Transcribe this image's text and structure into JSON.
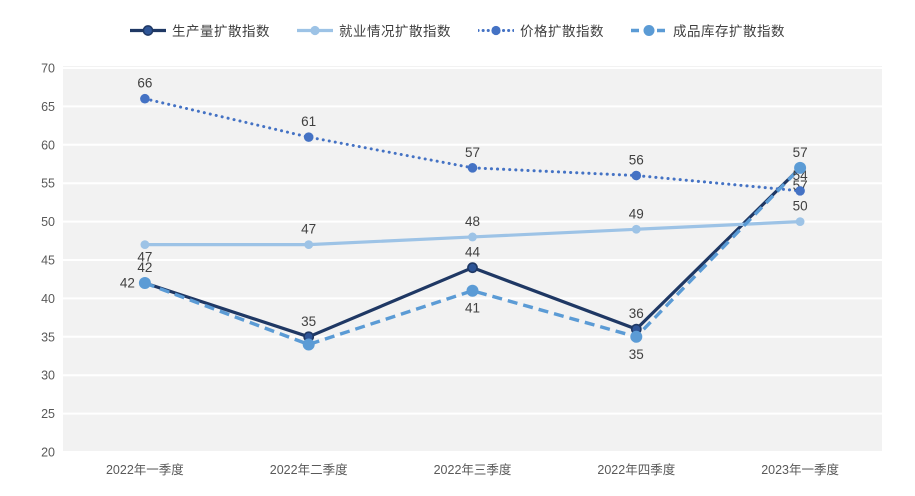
{
  "chart_data": {
    "type": "line",
    "title": "",
    "legend_position": "top",
    "grid": true,
    "plot_bg_color": "#f2f2f2",
    "grid_color": "#ffffff",
    "data_label_color": "#404040",
    "axis_label_color": "#595959",
    "categories": [
      "2022年一季度",
      "2022年二季度",
      "2022年三季度",
      "2022年四季度",
      "2023年一季度"
    ],
    "y_axis": {
      "min": 20,
      "max": 70,
      "step": 5,
      "ticks": [
        70,
        65,
        60,
        55,
        50,
        45,
        40,
        35,
        30,
        25,
        20
      ],
      "tick_labels": [
        "70",
        "65",
        "60",
        "55",
        "50",
        "45",
        "40",
        "35",
        "30",
        "25",
        "20"
      ]
    },
    "series": [
      {
        "id": "production",
        "name": "生产量扩散指数",
        "style": "solid",
        "line_color": "#1f3864",
        "marker_color": "#2e5597",
        "values": [
          42,
          35,
          44,
          36,
          57
        ],
        "data_labels": [
          "42",
          "35",
          "44",
          "36",
          "57"
        ],
        "label_positions": [
          "above",
          "above",
          "above",
          "above",
          "above"
        ]
      },
      {
        "id": "employment",
        "name": "就业情况扩散指数",
        "style": "solid",
        "line_color": "#9dc3e6",
        "marker_color": "#9dc3e6",
        "values": [
          47,
          47,
          48,
          49,
          50
        ],
        "data_labels": [
          "47",
          "47",
          "48",
          "49",
          "50"
        ],
        "label_positions": [
          "below",
          "above",
          "above",
          "above",
          "above"
        ]
      },
      {
        "id": "price",
        "name": "价格扩散指数",
        "style": "dotted",
        "line_color": "#4472c4",
        "marker_color": "#4472c4",
        "values": [
          66,
          61,
          57,
          56,
          54
        ],
        "data_labels": [
          "66",
          "61",
          "57",
          "56",
          "54"
        ],
        "label_positions": [
          "above",
          "above",
          "above",
          "above",
          "above"
        ]
      },
      {
        "id": "inventory",
        "name": "成品库存扩散指数",
        "style": "dashed",
        "line_color": "#5b9bd5",
        "marker_color": "#5b9bd5",
        "values": [
          42,
          34,
          41,
          35,
          57
        ],
        "data_labels": [
          "42",
          "",
          "41",
          "35",
          "57"
        ],
        "label_positions": [
          "left",
          "hidden",
          "below",
          "below",
          "below"
        ]
      }
    ]
  }
}
